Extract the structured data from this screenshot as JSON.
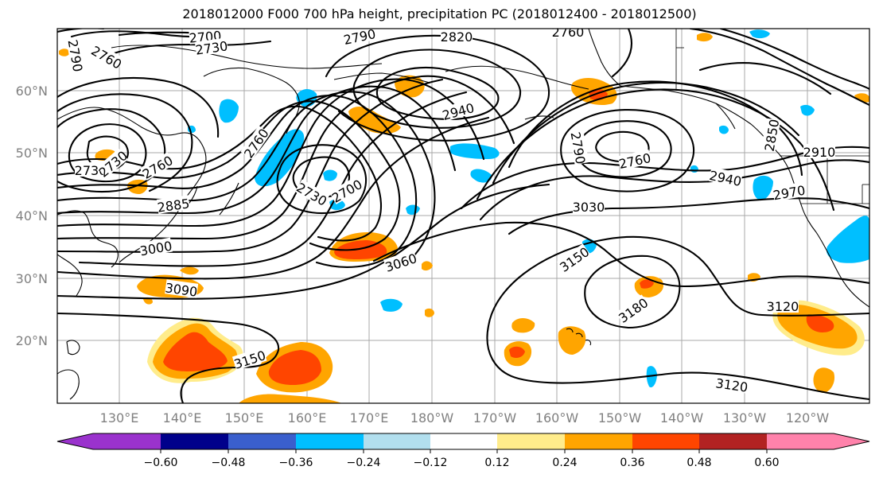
{
  "title": "2018012000 F000 700 hPa height, precipitation PC (2018012400 - 2018012500)",
  "lat_labels": [
    "60°N",
    "50°N",
    "40°N",
    "30°N",
    "20°N"
  ],
  "lon_labels": [
    "130°E",
    "140°E",
    "150°E",
    "160°E",
    "170°E",
    "180°W",
    "170°W",
    "160°W",
    "150°W",
    "140°W",
    "130°W",
    "120°W"
  ],
  "contour_labels": [
    "2790",
    "2760",
    "2700",
    "2730",
    "2790",
    "2820",
    "2760",
    "2940",
    "2790",
    "2760",
    "2850",
    "2910",
    "2940",
    "2970",
    "2730",
    "2730",
    "2760",
    "2760",
    "2885",
    "2730",
    "2700",
    "3030",
    "3000",
    "3060",
    "3150",
    "3090",
    "3180",
    "3120",
    "3150",
    "3120"
  ],
  "colorbar": {
    "ticks": [
      "−0.60",
      "−0.48",
      "−0.36",
      "−0.24",
      "−0.12",
      "0.12",
      "0.24",
      "0.36",
      "0.48",
      "0.60"
    ],
    "colors": [
      "#9a32cd",
      "#00008b",
      "#3a5fcd",
      "#00bfff",
      "#b2dfee",
      "#ffffff",
      "#ffec8b",
      "#ffa500",
      "#ff4500",
      "#b22222",
      "#ff82ab"
    ]
  },
  "precip_colors": {
    "light_blue": "#b2dfee",
    "blue": "#00bfff",
    "yellow": "#ffec8b",
    "orange": "#ffa500",
    "red": "#ff4500"
  }
}
